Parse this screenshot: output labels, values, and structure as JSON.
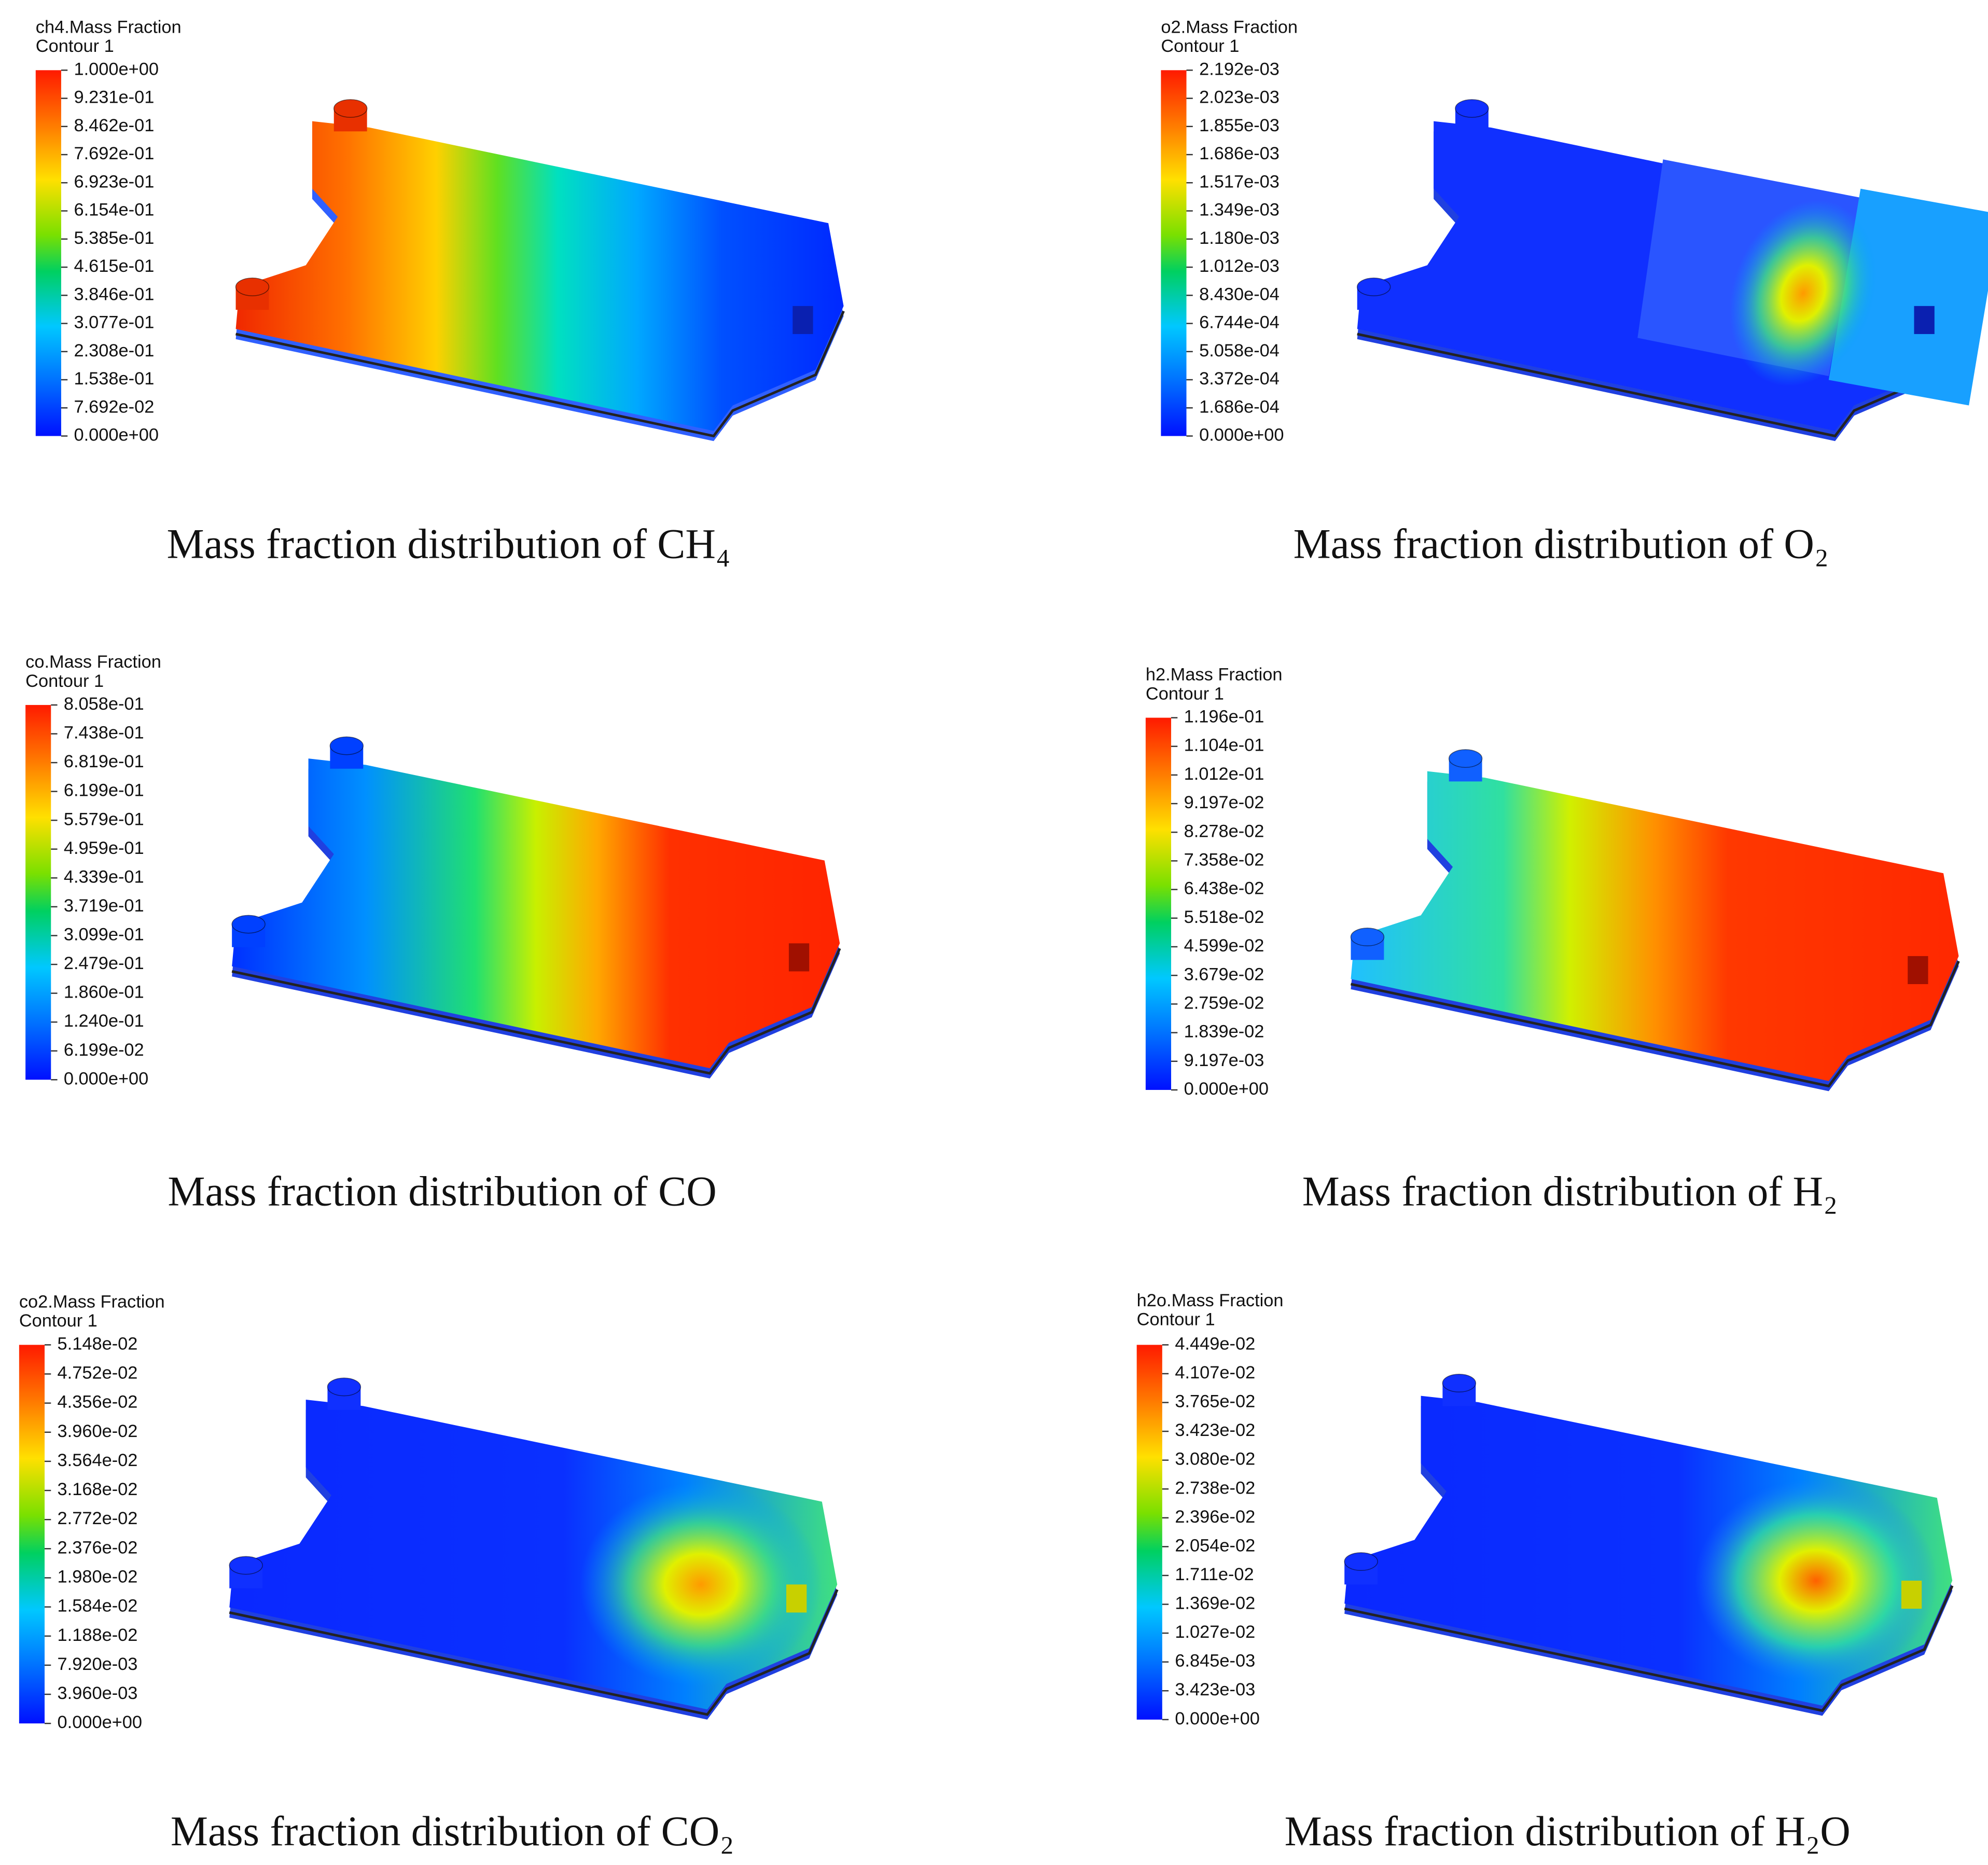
{
  "panels": [
    {
      "title": "ch4.Mass Fraction",
      "subtitle": "Contour 1",
      "labels": [
        "1.000e+00",
        "9.231e-01",
        "8.462e-01",
        "7.692e-01",
        "6.923e-01",
        "6.154e-01",
        "5.385e-01",
        "4.615e-01",
        "3.846e-01",
        "3.077e-01",
        "2.308e-01",
        "1.538e-01",
        "7.692e-02",
        "0.000e+00"
      ],
      "caption": "Mass fraction distribution of CH₄"
    },
    {
      "title": "o2.Mass Fraction",
      "subtitle": "Contour 1",
      "labels": [
        "2.192e-03",
        "2.023e-03",
        "1.855e-03",
        "1.686e-03",
        "1.517e-03",
        "1.349e-03",
        "1.180e-03",
        "1.012e-03",
        "8.430e-04",
        "6.744e-04",
        "5.058e-04",
        "3.372e-04",
        "1.686e-04",
        "0.000e+00"
      ],
      "caption": "Mass fraction distribution of O₂"
    },
    {
      "title": "co.Mass Fraction",
      "subtitle": "Contour 1",
      "labels": [
        "8.058e-01",
        "7.438e-01",
        "6.819e-01",
        "6.199e-01",
        "5.579e-01",
        "4.959e-01",
        "4.339e-01",
        "3.719e-01",
        "3.099e-01",
        "2.479e-01",
        "1.860e-01",
        "1.240e-01",
        "6.199e-02",
        "0.000e+00"
      ],
      "caption": "Mass fraction distribution of CO"
    },
    {
      "title": "h2.Mass Fraction",
      "subtitle": "Contour 1",
      "labels": [
        "1.196e-01",
        "1.104e-01",
        "1.012e-01",
        "9.197e-02",
        "8.278e-02",
        "7.358e-02",
        "6.438e-02",
        "5.518e-02",
        "4.599e-02",
        "3.679e-02",
        "2.759e-02",
        "1.839e-02",
        "9.197e-03",
        "0.000e+00"
      ],
      "caption": "Mass fraction distribution of H₂"
    },
    {
      "title": "co2.Mass Fraction",
      "subtitle": "Contour 1",
      "labels": [
        "5.148e-02",
        "4.752e-02",
        "4.356e-02",
        "3.960e-02",
        "3.564e-02",
        "3.168e-02",
        "2.772e-02",
        "2.376e-02",
        "1.980e-02",
        "1.584e-02",
        "1.188e-02",
        "7.920e-03",
        "3.960e-03",
        "0.000e+00"
      ],
      "caption": "Mass fraction distribution of CO₂"
    },
    {
      "title": "h2o.Mass Fraction",
      "subtitle": "Contour 1",
      "labels": [
        "4.449e-02",
        "4.107e-02",
        "3.765e-02",
        "3.423e-02",
        "3.080e-02",
        "2.738e-02",
        "2.396e-02",
        "2.054e-02",
        "1.711e-02",
        "1.369e-02",
        "1.027e-02",
        "6.845e-03",
        "3.423e-03",
        "0.000e+00"
      ],
      "caption": "Mass fraction distribution of H₂O"
    }
  ]
}
